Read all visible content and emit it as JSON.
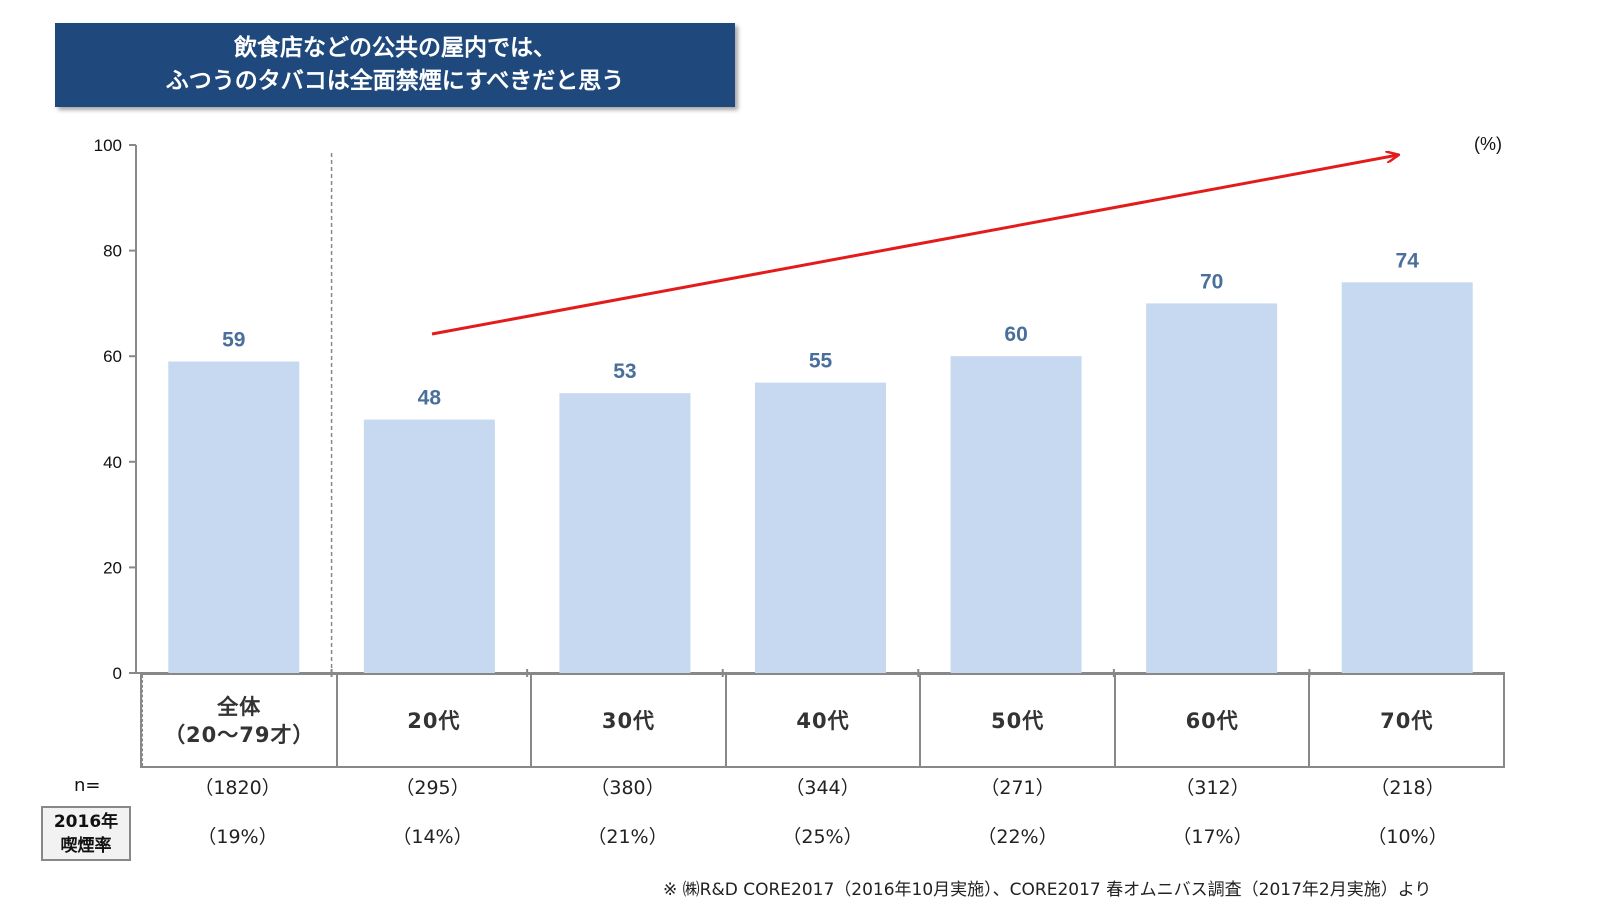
{
  "title": {
    "line1": "飲食店などの公共の屋内では、",
    "line2": "ふつうのタバコは全面禁煙にすべきだと思う"
  },
  "unit_label": "(%)",
  "chart_data": {
    "type": "bar",
    "title": "飲食店などの公共の屋内では、ふつうのタバコは全面禁煙にすべきだと思う",
    "xlabel": "",
    "ylabel": "",
    "ylim": [
      0,
      100
    ],
    "yticks": [
      0,
      20,
      40,
      60,
      80,
      100
    ],
    "categories": [
      "全体（20〜79才）",
      "20代",
      "30代",
      "40代",
      "50代",
      "60代",
      "70代"
    ],
    "values": [
      59,
      48,
      53,
      55,
      60,
      70,
      74
    ],
    "data_labels": [
      "59",
      "48",
      "53",
      "55",
      "60",
      "70",
      "74"
    ],
    "bar_color": "#c6d9f0",
    "label_color": "#4a6f9b",
    "trend_arrow_color": "#e31b1b",
    "grid": false
  },
  "table": {
    "categories": [
      {
        "line1": "全体",
        "line2": "（20〜79才）"
      },
      {
        "line1": "20代"
      },
      {
        "line1": "30代"
      },
      {
        "line1": "40代"
      },
      {
        "line1": "50代"
      },
      {
        "line1": "60代"
      },
      {
        "line1": "70代"
      }
    ],
    "n_label": "n=",
    "n_values": [
      "（1820）",
      "（295）",
      "（380）",
      "（344）",
      "（271）",
      "（312）",
      "（218）"
    ],
    "smoking_label_line1": "2016年",
    "smoking_label_line2": "喫煙率",
    "smoking_rates": [
      "（19%）",
      "（14%）",
      "（21%）",
      "（25%）",
      "（22%）",
      "（17%）",
      "（10%）"
    ]
  },
  "footnote": "※ ㈱R&D CORE2017（2016年10月実施）、CORE2017 春オムニバス調査（2017年2月実施）より"
}
